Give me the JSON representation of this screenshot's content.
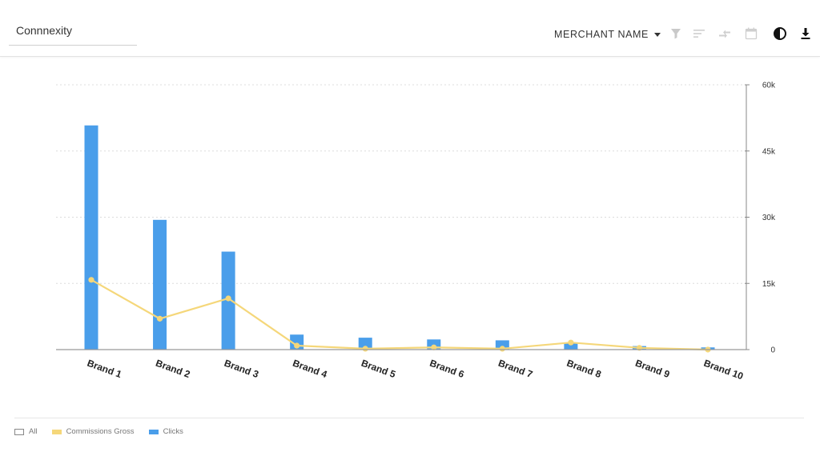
{
  "header": {
    "title": "Connnexity",
    "dimension_select": "MERCHANT NAME",
    "icons": [
      "filter-icon",
      "sort-icon",
      "compare-icon",
      "calendar-icon",
      "theme-contrast-icon",
      "download-icon"
    ]
  },
  "legend": {
    "items": [
      {
        "label": "All",
        "color": "#ffffff"
      },
      {
        "label": "Commissions Gross",
        "color": "#f5d77a"
      },
      {
        "label": "Clicks",
        "color": "#4a9eea"
      }
    ]
  },
  "colors": {
    "bar": "#4a9eea",
    "line": "#f5d77a",
    "grid": "#dcdcdc"
  },
  "chart_data": {
    "type": "bar",
    "categories": [
      "Brand 1",
      "Brand 2",
      "Brand 3",
      "Brand 4",
      "Brand 5",
      "Brand 6",
      "Brand 7",
      "Brand 8",
      "Brand 9",
      "Brand 10"
    ],
    "series": [
      {
        "name": "Clicks",
        "type": "bar",
        "values": [
          50800,
          29400,
          22200,
          3400,
          2700,
          2300,
          2100,
          1600,
          800,
          500
        ]
      },
      {
        "name": "Commissions Gross",
        "type": "line",
        "values": [
          15800,
          7000,
          11600,
          900,
          200,
          500,
          200,
          1600,
          400,
          0
        ]
      }
    ],
    "y_axis": {
      "position": "right",
      "ticks": [
        "0",
        "15k",
        "30k",
        "45k",
        "60k"
      ],
      "range": [
        0,
        60000
      ]
    },
    "grid": true,
    "legend_position": "bottom-left"
  }
}
